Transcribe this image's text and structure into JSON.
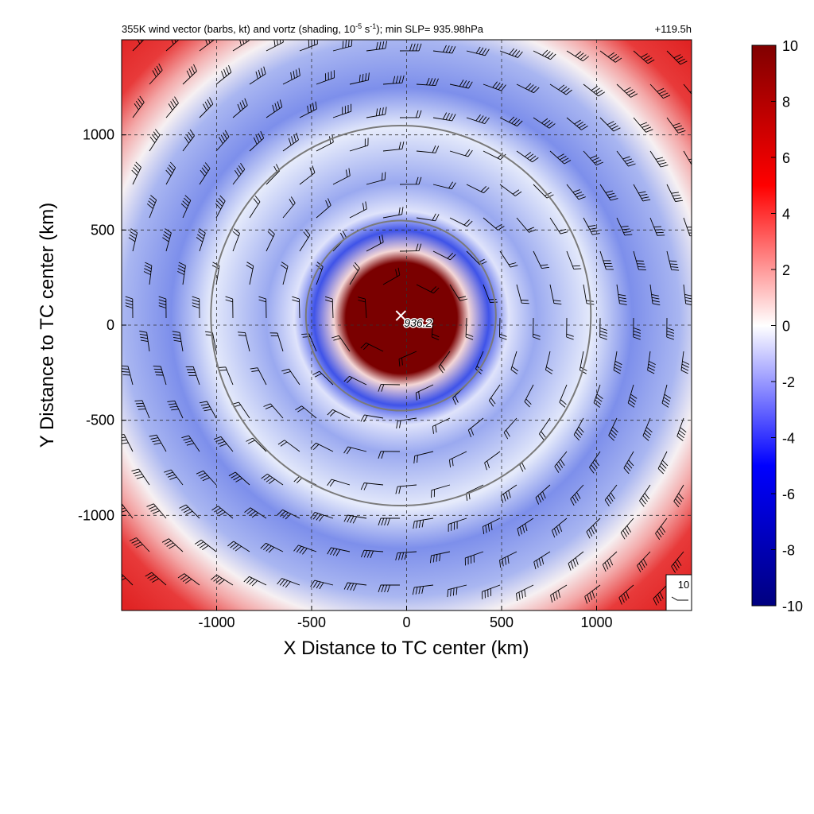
{
  "chart_data": {
    "type": "heatmap",
    "title": "355K wind vector (barbs, kt) and vortz (shading, 10",
    "title_exponent": "-5",
    "title_units_mid": " s",
    "title_units_exponent": "-1",
    "title_tail": "); min SLP= 935.98hPa",
    "forecast_time": "+119.5h",
    "xlabel": "X Distance to TC center (km)",
    "ylabel": "Y Distance to TC center (km)",
    "xlim": [
      -1500,
      1500
    ],
    "ylim": [
      -1500,
      1500
    ],
    "xticks": [
      -1000,
      -500,
      0,
      500,
      1000
    ],
    "yticks": [
      -1000,
      -500,
      0,
      500,
      1000
    ],
    "grid": true,
    "colorbar": {
      "min": -10,
      "max": 10,
      "ticks": [
        10,
        8,
        6,
        4,
        2,
        0,
        -2,
        -4,
        -6,
        -8,
        -10
      ],
      "colors": [
        "#00007f",
        "#0000ff",
        "#ffffff",
        "#ff0000",
        "#800000"
      ]
    },
    "center_marker": {
      "x": -30,
      "y": 50,
      "label": "936.2"
    },
    "range_circles_km": [
      500,
      1000
    ],
    "reference_barb": {
      "label": "10",
      "speed_kt": 10
    },
    "vorticity_field": {
      "core": {
        "radius_km": 150,
        "value": 10
      },
      "negative_ring": {
        "inner_km": 220,
        "outer_km": 900,
        "value": -5
      },
      "positive_outer": {
        "from_km": 1000,
        "value": 6.5
      }
    }
  }
}
